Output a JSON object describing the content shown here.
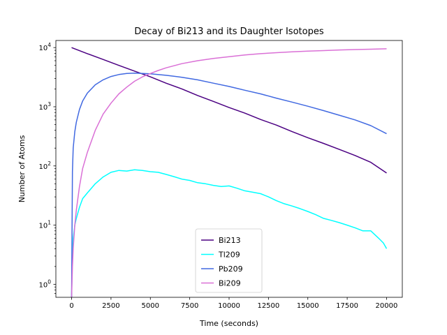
{
  "chart_data": {
    "type": "line",
    "title": "Decay of Bi213 and its Daughter Isotopes",
    "xlabel": "Time (seconds)",
    "ylabel": "Number of Atoms",
    "xlim": [
      -1000,
      21000
    ],
    "ylim_log10": [
      -0.22,
      4.12
    ],
    "yscale": "log",
    "x_ticks": [
      0,
      2500,
      5000,
      7500,
      10000,
      12500,
      15000,
      17500,
      20000
    ],
    "x_tick_labels": [
      "0",
      "2500",
      "5000",
      "7500",
      "10000",
      "12500",
      "15000",
      "17500",
      "20000"
    ],
    "y_ticks": [
      1,
      10,
      100,
      1000,
      10000
    ],
    "y_tick_labels": [
      {
        "base": "10",
        "exp": "0"
      },
      {
        "base": "10",
        "exp": "1"
      },
      {
        "base": "10",
        "exp": "2"
      },
      {
        "base": "10",
        "exp": "3"
      },
      {
        "base": "10",
        "exp": "4"
      }
    ],
    "grid": false,
    "legend_position": "lower-center",
    "series": [
      {
        "name": "Bi213",
        "color": "#4b0082",
        "x": [
          0,
          1000,
          2000,
          3000,
          4000,
          5000,
          6000,
          7000,
          8000,
          9000,
          10000,
          11000,
          12000,
          13000,
          14000,
          15000,
          16000,
          17000,
          18000,
          19000,
          20000
        ],
        "y": [
          10000,
          7900,
          6300,
          5000,
          4000,
          3200,
          2500,
          2000,
          1550,
          1230,
          970,
          780,
          610,
          490,
          380,
          300,
          240,
          190,
          150,
          115,
          76
        ]
      },
      {
        "name": "Tl209",
        "color": "#00ffff",
        "x": [
          0,
          50,
          100,
          200,
          300,
          500,
          700,
          1000,
          1500,
          2000,
          2500,
          3000,
          3500,
          4000,
          4500,
          5000,
          5500,
          6000,
          6500,
          7000,
          7500,
          8000,
          8500,
          9000,
          9500,
          10000,
          10500,
          11000,
          11500,
          12000,
          12500,
          13000,
          13500,
          14000,
          14500,
          15000,
          15500,
          16000,
          16500,
          17000,
          17500,
          18000,
          18500,
          19000,
          19500,
          19800,
          20000
        ],
        "y": [
          0.6,
          4,
          6,
          10,
          13,
          20,
          28,
          35,
          50,
          65,
          78,
          84,
          82,
          86,
          84,
          80,
          78,
          72,
          66,
          60,
          57,
          52,
          50,
          47,
          45,
          46,
          42,
          38,
          36,
          34,
          30,
          26,
          23,
          21,
          19,
          17,
          15,
          13,
          12,
          11,
          10,
          9,
          8,
          8,
          6,
          5,
          4
        ]
      },
      {
        "name": "Pb209",
        "color": "#4169e1",
        "x": [
          0,
          50,
          100,
          200,
          300,
          500,
          700,
          1000,
          1500,
          2000,
          2500,
          3000,
          3500,
          4000,
          4500,
          5000,
          6000,
          7000,
          8000,
          9000,
          10000,
          11000,
          12000,
          13000,
          14000,
          15000,
          16000,
          17000,
          18000,
          19000,
          20000
        ],
        "y": [
          0.6,
          80,
          200,
          380,
          550,
          900,
          1250,
          1700,
          2350,
          2850,
          3250,
          3500,
          3650,
          3700,
          3650,
          3600,
          3400,
          3150,
          2850,
          2500,
          2200,
          1900,
          1650,
          1400,
          1200,
          1020,
          860,
          720,
          600,
          480,
          350
        ]
      },
      {
        "name": "Bi209",
        "color": "#da70d6",
        "x": [
          0,
          50,
          100,
          200,
          300,
          500,
          700,
          1000,
          1500,
          2000,
          2500,
          3000,
          3500,
          4000,
          4500,
          5000,
          5500,
          6000,
          7000,
          8000,
          9000,
          10000,
          11000,
          12000,
          13000,
          14000,
          15000,
          16000,
          17000,
          18000,
          19000,
          20000
        ],
        "y": [
          0.6,
          2,
          4,
          10,
          18,
          45,
          90,
          170,
          400,
          750,
          1150,
          1650,
          2150,
          2700,
          3200,
          3650,
          4100,
          4550,
          5350,
          6000,
          6550,
          7000,
          7500,
          7900,
          8200,
          8500,
          8700,
          8900,
          9100,
          9250,
          9400,
          9550
        ]
      }
    ]
  }
}
